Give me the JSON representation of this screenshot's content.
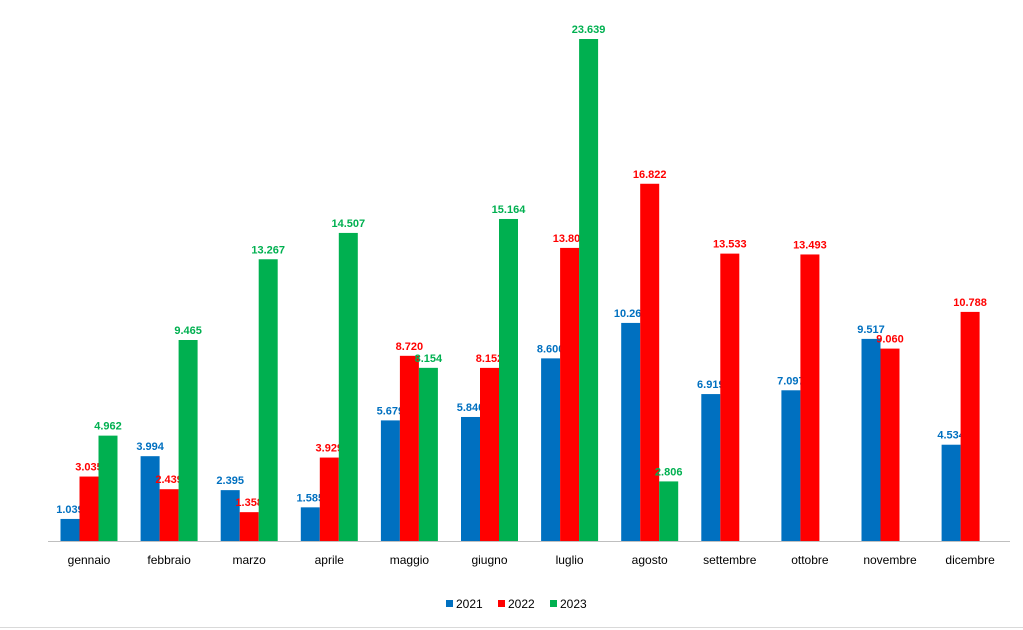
{
  "chart_data": {
    "type": "bar",
    "title": "",
    "xlabel": "",
    "ylabel": "",
    "ylim": [
      0,
      24
    ],
    "grid": false,
    "legend_position": "bottom",
    "categories": [
      "gennaio",
      "febbraio",
      "marzo",
      "aprile",
      "maggio",
      "giugno",
      "luglio",
      "agosto",
      "settembre",
      "ottobre",
      "novembre",
      "dicembre"
    ],
    "series": [
      {
        "name": "2021",
        "color": "#0070c0",
        "values": [
          1039,
          3994,
          2395,
          1585,
          5679,
          5840,
          8600,
          10269,
          6919,
          7097,
          9517,
          4534
        ],
        "labels": [
          "1.039",
          "3.994",
          "2.395",
          "1.585",
          "5.679",
          "5.840",
          "8.600",
          "10.269",
          "6.919",
          "7.097",
          "9.517",
          "4.534"
        ]
      },
      {
        "name": "2022",
        "color": "#ff0000",
        "values": [
          3035,
          2439,
          1358,
          3929,
          8720,
          8152,
          13802,
          16822,
          13533,
          13493,
          9060,
          10788
        ],
        "labels": [
          "3.035",
          "2.439",
          "1.358",
          "3.929",
          "8.720",
          "8.152",
          "13.802",
          "16.822",
          "13.533",
          "13.493",
          "9.060",
          "10.788"
        ]
      },
      {
        "name": "2023",
        "color": "#00b050",
        "values": [
          4962,
          9465,
          13267,
          14507,
          8154,
          15164,
          23639,
          2806,
          null,
          null,
          null,
          null
        ],
        "labels": [
          "4.962",
          "9.465",
          "13.267",
          "14.507",
          "8.154",
          "15.164",
          "23.639",
          "2.806",
          null,
          null,
          null,
          null
        ]
      }
    ]
  }
}
